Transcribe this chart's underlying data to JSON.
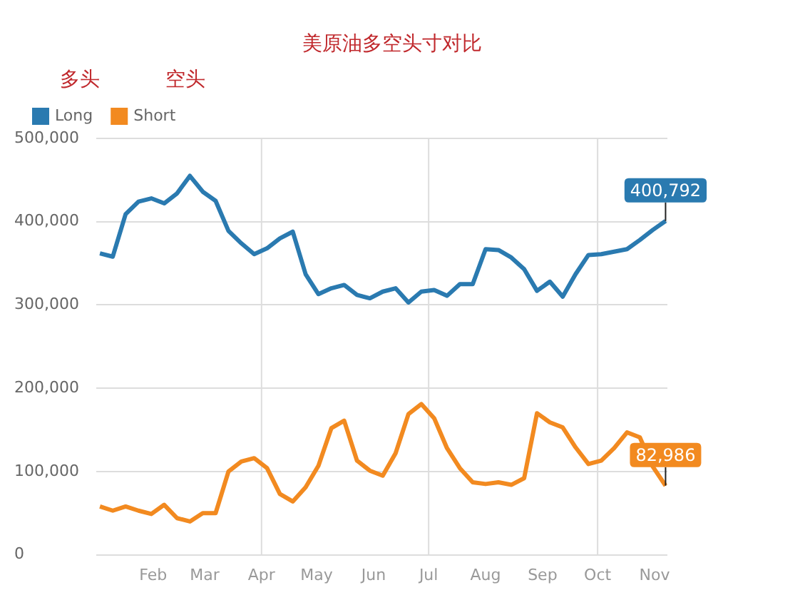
{
  "chart_data": {
    "type": "line",
    "title": "美原油多空头寸对比",
    "annotations": [
      "多头",
      "空头"
    ],
    "x": [
      "--01-03",
      "--01-10",
      "--01-17",
      "--01-24",
      "--01-31",
      "--02-07",
      "--02-14",
      "--02-21",
      "--02-28",
      "--03-07",
      "--03-14",
      "--03-21",
      "--03-28",
      "--04-04",
      "--04-11",
      "--04-18",
      "--04-25",
      "--05-02",
      "--05-09",
      "--05-16",
      "--05-23",
      "--05-30",
      "--06-06",
      "--06-13",
      "--06-20",
      "--06-27",
      "--07-04",
      "--07-11",
      "--07-18",
      "--07-25",
      "--08-01",
      "--08-08",
      "--08-15",
      "--08-22",
      "--08-29",
      "--09-05",
      "--09-12",
      "--09-19",
      "--09-26",
      "--10-03",
      "--10-10",
      "--10-17",
      "--10-24",
      "--10-31",
      "--11-07"
    ],
    "series": [
      {
        "name": "Long",
        "color": "#2a7ab0",
        "values": [
          362000,
          358000,
          409000,
          424000,
          428000,
          422000,
          434000,
          455000,
          436000,
          425000,
          389000,
          374000,
          361000,
          368000,
          380000,
          388000,
          337000,
          313000,
          320000,
          324000,
          312000,
          308000,
          316000,
          320000,
          303000,
          316000,
          318000,
          311000,
          325000,
          325000,
          367000,
          366000,
          357000,
          343000,
          317000,
          328000,
          310000,
          337000,
          360000,
          361000,
          364000,
          367000,
          378000,
          390000,
          400792
        ],
        "value_labels": [
          null,
          null,
          null,
          null,
          null,
          null,
          null,
          null,
          null,
          null,
          null,
          null,
          null,
          null,
          null,
          null,
          null,
          null,
          null,
          null,
          null,
          null,
          null,
          null,
          null,
          null,
          null,
          null,
          null,
          null,
          null,
          null,
          null,
          null,
          null,
          null,
          null,
          null,
          null,
          null,
          null,
          null,
          null,
          null,
          "400,792"
        ]
      },
      {
        "name": "Short",
        "color": "#f28a20",
        "values": [
          58000,
          53000,
          58000,
          53000,
          49000,
          60000,
          44000,
          40000,
          50000,
          50000,
          100000,
          112000,
          116000,
          104000,
          73000,
          64000,
          81000,
          107000,
          152000,
          161000,
          113000,
          101000,
          95000,
          122000,
          169000,
          181000,
          164000,
          128000,
          104000,
          87000,
          85000,
          87000,
          84000,
          92000,
          170000,
          159000,
          153000,
          129000,
          109000,
          113000,
          128000,
          147000,
          141000,
          106000,
          82986
        ],
        "value_labels": [
          null,
          null,
          null,
          null,
          null,
          null,
          null,
          null,
          null,
          null,
          null,
          null,
          null,
          null,
          null,
          null,
          null,
          null,
          null,
          null,
          null,
          null,
          null,
          null,
          null,
          null,
          null,
          null,
          null,
          null,
          null,
          null,
          null,
          null,
          null,
          null,
          null,
          null,
          null,
          null,
          null,
          null,
          null,
          null,
          "82,986"
        ]
      }
    ],
    "xlim": [
      "--01-01",
      "--11-08"
    ],
    "xticks": [
      {
        "value": "--02-01",
        "label": "Feb"
      },
      {
        "value": "--03-01",
        "label": "Mar"
      },
      {
        "value": "--04-01",
        "label": "Apr"
      },
      {
        "value": "--05-01",
        "label": "May"
      },
      {
        "value": "--06-01",
        "label": "Jun"
      },
      {
        "value": "--07-01",
        "label": "Jul"
      },
      {
        "value": "--08-01",
        "label": "Aug"
      },
      {
        "value": "--09-01",
        "label": "Sep"
      },
      {
        "value": "--10-01",
        "label": "Oct"
      },
      {
        "value": "--11-01",
        "label": "Nov"
      }
    ],
    "ylim": [
      0,
      500000
    ],
    "yticks": [
      {
        "value": 0,
        "label": "0"
      },
      {
        "value": 100000,
        "label": "100,000"
      },
      {
        "value": 200000,
        "label": "200,000"
      },
      {
        "value": 300000,
        "label": "300,000"
      },
      {
        "value": 400000,
        "label": "400,000"
      },
      {
        "value": 500000,
        "label": "500,000"
      }
    ],
    "ref_lines": [
      {
        "axis": "x",
        "value": "--04-01"
      },
      {
        "axis": "x",
        "value": "--07-01"
      },
      {
        "axis": "x",
        "value": "--10-01"
      }
    ],
    "grid": "y",
    "legend": "top left",
    "marker": "none",
    "line_style": "solid"
  }
}
